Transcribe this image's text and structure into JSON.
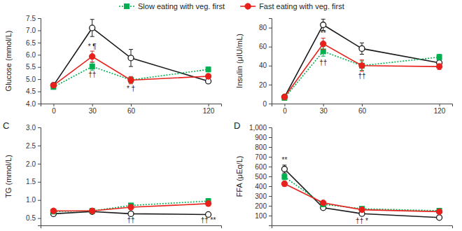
{
  "chart_data": [
    {
      "type": "line",
      "y_label": "Glucose (mmol/L)",
      "x": [
        0,
        30,
        60,
        120
      ],
      "xlim": [
        -10,
        130
      ],
      "xticks": [
        0,
        30,
        60,
        120
      ],
      "ylim": [
        4,
        7.5
      ],
      "yticks": [
        {
          "value": 4,
          "label": "4.0"
        },
        4.5,
        {
          "value": 5,
          "label": "5.0"
        },
        5.5,
        {
          "value": 6,
          "label": "6.0"
        },
        6.5,
        {
          "value": 7,
          "label": "7.0"
        },
        7.5
      ],
      "legend": "top",
      "series": [
        {
          "color": "#1a1a1a",
          "marker": "circle-open",
          "line_style": "solid",
          "values": [
            4.75,
            7.1,
            5.87,
            4.92
          ],
          "errors": [
            0.08,
            0.35,
            0.35,
            0.08
          ]
        },
        {
          "name": "Slow eating with veg. first",
          "color": "#00b050",
          "marker": "square",
          "line_style": "dotted",
          "values": [
            4.68,
            5.52,
            4.97,
            5.4
          ],
          "errors": [
            0.08,
            0.15,
            0.12,
            0.1
          ]
        },
        {
          "name": "Fast eating with veg. first",
          "color": "#e8201c",
          "marker": "circle",
          "line_style": "solid",
          "values": [
            4.75,
            5.93,
            4.96,
            5.12
          ],
          "errors": [
            0.08,
            0.22,
            0.15,
            0.1
          ]
        }
      ],
      "annotations": [
        {
          "text": "* ¶",
          "x": 30,
          "y": 6.35
        },
        {
          "text": "††",
          "x": 30,
          "y": 5.18
        },
        {
          "text": "* †",
          "x": 60,
          "y": 4.62
        }
      ]
    },
    {
      "type": "line",
      "y_label": "Insulin (μIU/mL)",
      "x": [
        0,
        30,
        60,
        120
      ],
      "xlim": [
        -10,
        130
      ],
      "xticks": [
        0,
        30,
        60,
        120
      ],
      "ylim": [
        0,
        90
      ],
      "yticks": [
        0,
        20,
        40,
        60,
        80
      ],
      "series": [
        {
          "color": "#1a1a1a",
          "marker": "circle-open",
          "line_style": "solid",
          "values": [
            7,
            83,
            58,
            43
          ],
          "errors": [
            1,
            6,
            6,
            3
          ]
        },
        {
          "color": "#00b050",
          "marker": "square",
          "line_style": "dotted",
          "values": [
            6,
            55,
            40,
            49
          ],
          "errors": [
            1,
            5,
            5,
            3
          ]
        },
        {
          "color": "#e8201c",
          "marker": "circle",
          "line_style": "solid",
          "values": [
            7,
            63,
            40,
            39
          ],
          "errors": [
            1,
            6,
            6,
            3
          ]
        }
      ],
      "annotations": [
        {
          "text": "**",
          "x": 30,
          "y": 74
        },
        {
          "text": "††",
          "x": 30,
          "y": 43
        },
        {
          "text": "††",
          "x": 60,
          "y": 29
        }
      ]
    },
    {
      "type": "line",
      "title": "C",
      "y_label": "TG (mmol/L)",
      "x": [
        0,
        30,
        60,
        120
      ],
      "xlim": [
        -10,
        130
      ],
      "ylim": [
        0.3,
        3
      ],
      "yticks": [
        0.5,
        {
          "value": 1,
          "label": "1.0"
        },
        1.5,
        {
          "value": 2,
          "label": "2.0"
        },
        2.5,
        {
          "value": 3,
          "label": "3.0"
        }
      ],
      "tick_labels": "y",
      "series": [
        {
          "color": "#1a1a1a",
          "marker": "circle-open",
          "line_style": "solid",
          "values": [
            0.62,
            0.68,
            0.62,
            0.6
          ],
          "errors": [
            0.05,
            0.05,
            0.05,
            0.05
          ]
        },
        {
          "color": "#00b050",
          "marker": "square",
          "line_style": "dotted",
          "values": [
            0.68,
            0.7,
            0.85,
            0.97
          ],
          "errors": [
            0.05,
            0.05,
            0.06,
            0.07
          ]
        },
        {
          "color": "#e8201c",
          "marker": "circle",
          "line_style": "solid",
          "values": [
            0.7,
            0.7,
            0.8,
            0.9
          ],
          "errors": [
            0.05,
            0.05,
            0.06,
            0.07
          ]
        }
      ],
      "annotations": [
        {
          "text": "††",
          "x": 60,
          "y": 0.45
        },
        {
          "text": "†† **",
          "x": 120,
          "y": 0.45
        }
      ]
    },
    {
      "type": "line",
      "title": "D",
      "y_label": "FFA (μEq/L)",
      "x": [
        0,
        30,
        60,
        120
      ],
      "xlim": [
        -10,
        130
      ],
      "ylim": [
        0,
        1000
      ],
      "yticks": [
        100,
        200,
        300,
        400,
        500,
        600,
        700,
        800,
        900,
        {
          "value": 1000,
          "label": "1,000"
        }
      ],
      "tick_labels": "y",
      "series": [
        {
          "color": "#1a1a1a",
          "marker": "circle-open",
          "line_style": "solid",
          "values": [
            575,
            180,
            120,
            80
          ],
          "errors": [
            40,
            15,
            15,
            10
          ]
        },
        {
          "color": "#00b050",
          "marker": "square",
          "line_style": "dotted",
          "values": [
            495,
            215,
            170,
            150
          ],
          "errors": [
            30,
            15,
            15,
            10
          ]
        },
        {
          "color": "#e8201c",
          "marker": "circle",
          "line_style": "solid",
          "values": [
            425,
            230,
            160,
            140
          ],
          "errors": [
            25,
            15,
            15,
            10
          ]
        }
      ],
      "annotations": [
        {
          "text": "**",
          "x": 0,
          "y": 670
        },
        {
          "text": "†† *",
          "x": 60,
          "y": 50
        }
      ]
    }
  ]
}
